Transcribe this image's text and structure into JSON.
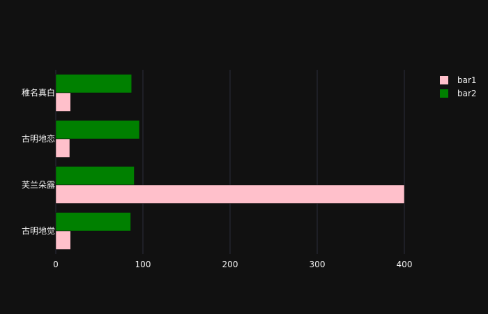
{
  "chart_data": {
    "type": "bar",
    "orientation": "horizontal",
    "categories": [
      "古明地觉",
      "芙兰朵露",
      "古明地恋",
      "稚名真白"
    ],
    "series": [
      {
        "name": "bar1",
        "color": "#ffc0cb",
        "values": [
          17,
          400,
          16,
          17
        ]
      },
      {
        "name": "bar2",
        "color": "#008000",
        "values": [
          86,
          90,
          96,
          87
        ]
      }
    ],
    "x_ticks": [
      0,
      100,
      200,
      300,
      400
    ],
    "xlim": [
      0,
      450
    ],
    "grid": true,
    "legend": "top-right",
    "colors": {
      "background": "#111111",
      "grid": "#2a2d3a",
      "text": "#f2f2f2"
    }
  }
}
